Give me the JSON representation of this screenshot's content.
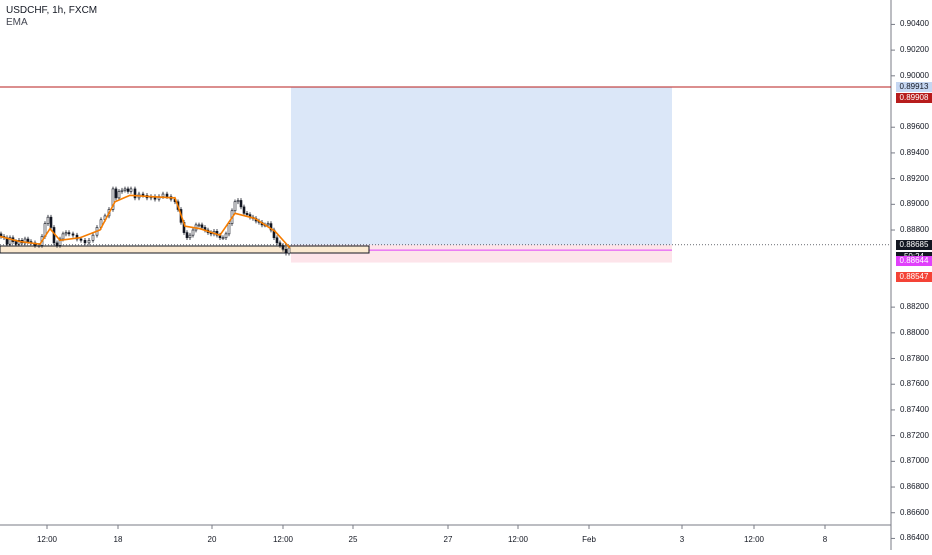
{
  "legend": {
    "symbol": "USDCHF, 1h, FXCM",
    "indicator": "EMA"
  },
  "chart_data": {
    "type": "candlestick",
    "ylim": [
      0.8631,
      0.9059
    ],
    "y_ticks": [
      "0.90400",
      "0.90200",
      "0.90000",
      "0.89600",
      "0.89400",
      "0.89200",
      "0.89000",
      "0.88800",
      "0.88200",
      "0.88000",
      "0.87800",
      "0.87600",
      "0.87400",
      "0.87200",
      "0.87000",
      "0.86800",
      "0.86600",
      "0.86400"
    ],
    "x_ticks": [
      "12:00",
      "18",
      "20",
      "12:00",
      "25",
      "27",
      "12:00",
      "Feb",
      "3",
      "12:00",
      "8"
    ],
    "ohlc_trend": [
      [
        0,
        0.8877
      ],
      [
        3,
        0.8875
      ],
      [
        6,
        0.8874
      ],
      [
        9,
        0.8869
      ],
      [
        12,
        0.8874
      ],
      [
        15,
        0.8871
      ],
      [
        18,
        0.8869
      ],
      [
        21,
        0.8872
      ],
      [
        24,
        0.887
      ],
      [
        27,
        0.8873
      ],
      [
        30,
        0.8871
      ],
      [
        34,
        0.887
      ],
      [
        38,
        0.8868
      ],
      [
        41,
        0.8868
      ],
      [
        44,
        0.8875
      ],
      [
        47,
        0.8885
      ],
      [
        50,
        0.889
      ],
      [
        53,
        0.8882
      ],
      [
        56,
        0.887
      ],
      [
        59,
        0.8868
      ],
      [
        62,
        0.8873
      ],
      [
        65,
        0.8877
      ],
      [
        68,
        0.8878
      ],
      [
        72,
        0.8877
      ],
      [
        76,
        0.8876
      ],
      [
        80,
        0.8873
      ],
      [
        84,
        0.8872
      ],
      [
        88,
        0.887
      ],
      [
        92,
        0.8872
      ],
      [
        96,
        0.8876
      ],
      [
        100,
        0.8882
      ],
      [
        104,
        0.8888
      ],
      [
        108,
        0.8891
      ],
      [
        112,
        0.8896
      ],
      [
        115,
        0.8912
      ],
      [
        118,
        0.8905
      ],
      [
        121,
        0.891
      ],
      [
        124,
        0.8911
      ],
      [
        127,
        0.8912
      ],
      [
        130,
        0.891
      ],
      [
        134,
        0.8912
      ],
      [
        138,
        0.8905
      ],
      [
        142,
        0.8908
      ],
      [
        146,
        0.8907
      ],
      [
        150,
        0.8905
      ],
      [
        154,
        0.8906
      ],
      [
        158,
        0.8904
      ],
      [
        162,
        0.8906
      ],
      [
        166,
        0.8908
      ],
      [
        170,
        0.8906
      ],
      [
        174,
        0.8904
      ],
      [
        177,
        0.8902
      ],
      [
        180,
        0.8896
      ],
      [
        183,
        0.8886
      ],
      [
        186,
        0.8878
      ],
      [
        189,
        0.8874
      ],
      [
        192,
        0.8876
      ],
      [
        195,
        0.888
      ],
      [
        198,
        0.8884
      ],
      [
        201,
        0.8884
      ],
      [
        204,
        0.8882
      ],
      [
        207,
        0.888
      ],
      [
        210,
        0.8878
      ],
      [
        213,
        0.8877
      ],
      [
        216,
        0.8879
      ],
      [
        219,
        0.8876
      ],
      [
        222,
        0.8874
      ],
      [
        225,
        0.8874
      ],
      [
        228,
        0.8877
      ],
      [
        231,
        0.8885
      ],
      [
        234,
        0.8895
      ],
      [
        237,
        0.8902
      ],
      [
        240,
        0.8903
      ],
      [
        243,
        0.8898
      ],
      [
        246,
        0.8893
      ],
      [
        249,
        0.8892
      ],
      [
        252,
        0.889
      ],
      [
        255,
        0.8889
      ],
      [
        258,
        0.8887
      ],
      [
        261,
        0.8886
      ],
      [
        264,
        0.8884
      ],
      [
        267,
        0.8884
      ],
      [
        270,
        0.8885
      ],
      [
        273,
        0.888
      ],
      [
        276,
        0.8874
      ],
      [
        279,
        0.887
      ],
      [
        282,
        0.8868
      ],
      [
        285,
        0.8865
      ],
      [
        288,
        0.8862
      ],
      [
        291,
        0.8866
      ]
    ],
    "ema": [
      [
        0,
        0.8875
      ],
      [
        20,
        0.8871
      ],
      [
        40,
        0.8869
      ],
      [
        50,
        0.8881
      ],
      [
        60,
        0.8872
      ],
      [
        80,
        0.8874
      ],
      [
        100,
        0.888
      ],
      [
        115,
        0.8902
      ],
      [
        130,
        0.8907
      ],
      [
        150,
        0.8906
      ],
      [
        175,
        0.8905
      ],
      [
        185,
        0.8883
      ],
      [
        200,
        0.8881
      ],
      [
        220,
        0.8876
      ],
      [
        235,
        0.8893
      ],
      [
        255,
        0.8889
      ],
      [
        275,
        0.8879
      ],
      [
        290,
        0.8866
      ]
    ],
    "levels": {
      "resistance": 0.89913,
      "resistance_marker": 0.89908,
      "current": 0.88685,
      "target_top": 0.89913,
      "entry": 0.88644,
      "stop": 0.88547
    },
    "price_labels": [
      "0.89913",
      "0.89908",
      "0.88685",
      "50:24",
      "0.88644",
      "0.88547"
    ],
    "colors": {
      "up": "#131722",
      "down": "#131722",
      "ema": "#f57c00",
      "profit": "#dbe7f8",
      "loss": "#fde4ea",
      "resistance": "#b71c1c"
    }
  }
}
